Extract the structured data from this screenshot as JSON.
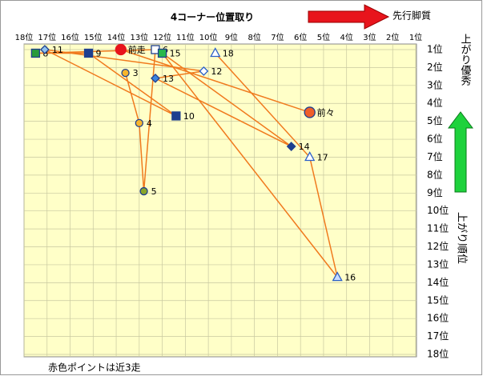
{
  "chart_data": {
    "type": "scatter",
    "title": "4コーナー位置取り",
    "x_annotation": "先行脚質",
    "y_annotation_top": "上がり優秀",
    "y_label": "上がり順位",
    "footnote": "赤色ポイントは近3走",
    "xlim": [
      18,
      1
    ],
    "ylim": [
      1,
      18
    ],
    "grid": true,
    "xticks": [
      {
        "value": 18,
        "label": "18位"
      },
      {
        "value": 17,
        "label": "17位"
      },
      {
        "value": 16,
        "label": "16位"
      },
      {
        "value": 15,
        "label": "15位"
      },
      {
        "value": 14,
        "label": "14位"
      },
      {
        "value": 13,
        "label": "13位"
      },
      {
        "value": 12,
        "label": "12位"
      },
      {
        "value": 11,
        "label": "11位"
      },
      {
        "value": 10,
        "label": "10位"
      },
      {
        "value": 9,
        "label": "9位"
      },
      {
        "value": 8,
        "label": "8位"
      },
      {
        "value": 7,
        "label": "7位"
      },
      {
        "value": 6,
        "label": "6位"
      },
      {
        "value": 5,
        "label": "5位"
      },
      {
        "value": 4,
        "label": "4位"
      },
      {
        "value": 3,
        "label": "3位"
      },
      {
        "value": 2,
        "label": "2位"
      },
      {
        "value": 1,
        "label": "1位"
      }
    ],
    "yticks": [
      {
        "value": 1,
        "label": "1位"
      },
      {
        "value": 2,
        "label": "2位"
      },
      {
        "value": 3,
        "label": "3位"
      },
      {
        "value": 4,
        "label": "4位"
      },
      {
        "value": 5,
        "label": "5位"
      },
      {
        "value": 6,
        "label": "6位"
      },
      {
        "value": 7,
        "label": "7位"
      },
      {
        "value": 8,
        "label": "8位"
      },
      {
        "value": 9,
        "label": "9位"
      },
      {
        "value": 10,
        "label": "10位"
      },
      {
        "value": 11,
        "label": "11位"
      },
      {
        "value": 12,
        "label": "12位"
      },
      {
        "value": 13,
        "label": "13位"
      },
      {
        "value": 14,
        "label": "14位"
      },
      {
        "value": 15,
        "label": "15位"
      },
      {
        "value": 16,
        "label": "16位"
      },
      {
        "value": 17,
        "label": "17位"
      },
      {
        "value": 18,
        "label": "18位"
      }
    ],
    "line_color": "#f07a1e",
    "series": [
      {
        "points": [
          {
            "label": "前々",
            "x": 5.6,
            "y": 4.5,
            "marker": "circle",
            "color": "#f0602a",
            "stroke": "#1f3f8f"
          },
          {
            "label": "前走",
            "x": 13.8,
            "y": 1.0,
            "marker": "circle",
            "color": "#e8141c",
            "stroke": "#e8141c"
          }
        ]
      },
      {
        "points": [
          {
            "label": "3",
            "x": 13.6,
            "y": 2.3,
            "marker": "circle",
            "color": "#f7b52c",
            "stroke": "#1f3f8f"
          },
          {
            "label": "4",
            "x": 13.0,
            "y": 5.1,
            "marker": "circle",
            "color": "#f7b52c",
            "stroke": "#1f3f8f"
          },
          {
            "label": "5",
            "x": 12.8,
            "y": 8.9,
            "marker": "circle",
            "color": "#8aa62a",
            "stroke": "#1f3f8f"
          },
          {
            "label": "6",
            "x": 12.3,
            "y": 1.0,
            "marker": "square",
            "color": "#ffffff",
            "stroke": "#1f3f8f"
          },
          {
            "label": "8",
            "x": 17.5,
            "y": 1.2,
            "marker": "square",
            "color": "#2a9a3a",
            "stroke": "#1f3f8f"
          },
          {
            "label": "9",
            "x": 15.2,
            "y": 1.2,
            "marker": "square",
            "color": "#1f3f8f",
            "stroke": "#1f3f8f"
          },
          {
            "label": "10",
            "x": 11.4,
            "y": 4.7,
            "marker": "square",
            "color": "#1f3f8f",
            "stroke": "#1f3f8f"
          },
          {
            "label": "11",
            "x": 17.1,
            "y": 1.0,
            "marker": "diamond",
            "color": "#8fc3ef",
            "stroke": "#1f3f8f"
          },
          {
            "label": "12",
            "x": 10.2,
            "y": 2.2,
            "marker": "diamond",
            "color": "#ffffff",
            "stroke": "#2a5fc8"
          },
          {
            "label": "13",
            "x": 12.3,
            "y": 2.6,
            "marker": "diamond",
            "color": "#3b86e0",
            "stroke": "#1f3f8f"
          },
          {
            "label": "14",
            "x": 6.4,
            "y": 6.4,
            "marker": "diamond",
            "color": "#1f3f8f",
            "stroke": "#1f3f8f"
          },
          {
            "label": "15",
            "x": 12.0,
            "y": 1.2,
            "marker": "square",
            "color": "#2ab84a",
            "stroke": "#1f3f8f"
          },
          {
            "label": "16",
            "x": 4.4,
            "y": 13.7,
            "marker": "triangle",
            "color": "#c8dcff",
            "stroke": "#2a5fc8"
          },
          {
            "label": "17",
            "x": 5.6,
            "y": 7.0,
            "marker": "triangle",
            "color": "#ffffff",
            "stroke": "#2a5fc8"
          },
          {
            "label": "18",
            "x": 9.7,
            "y": 1.2,
            "marker": "triangle",
            "color": "#ffffff",
            "stroke": "#2a5fc8"
          }
        ]
      }
    ]
  }
}
